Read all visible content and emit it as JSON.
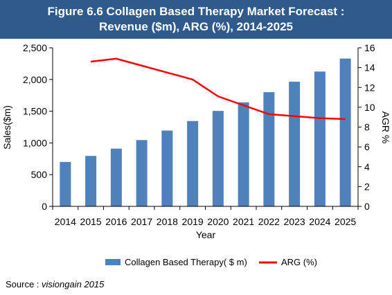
{
  "header": {
    "title_line1": "Figure 6.6 Collagen Based Therapy Market Forecast :",
    "title_line2": "Revenue ($m), ARG (%), 2014-2025"
  },
  "source": {
    "prefix": "Source : ",
    "name": "visiongain 2015"
  },
  "colors": {
    "header_bg": "#2e5a8c",
    "bar": "#4f81bd",
    "line": "#ff0000"
  },
  "chart_data": {
    "type": "bar+line",
    "categories": [
      "2014",
      "2015",
      "2016",
      "2017",
      "2018",
      "2019",
      "2020",
      "2021",
      "2022",
      "2023",
      "2024",
      "2025"
    ],
    "series": [
      {
        "name": "Collagen Based Therapy( $ m)",
        "type": "bar",
        "axis": "left",
        "values": [
          700,
          795,
          910,
          1045,
          1195,
          1345,
          1505,
          1640,
          1800,
          1965,
          2125,
          2330
        ]
      },
      {
        "name": "ARG (%)",
        "type": "line",
        "axis": "right",
        "values": [
          null,
          14.6,
          14.9,
          14.2,
          13.5,
          12.8,
          11.1,
          10.2,
          9.3,
          9.1,
          8.9,
          8.8
        ]
      }
    ],
    "xlabel": "Year",
    "ylabel_left": "Sales($m)",
    "ylabel_right": "AGR %",
    "ylim_left": [
      0,
      2500
    ],
    "yticks_left": [
      "0",
      "500",
      "1,000",
      "1,500",
      "2,000",
      "2,500"
    ],
    "ylim_right": [
      0,
      16
    ],
    "yticks_right": [
      "0",
      "2",
      "4",
      "6",
      "8",
      "10",
      "12",
      "14",
      "16"
    ],
    "grid": false,
    "legend_position": "bottom"
  }
}
